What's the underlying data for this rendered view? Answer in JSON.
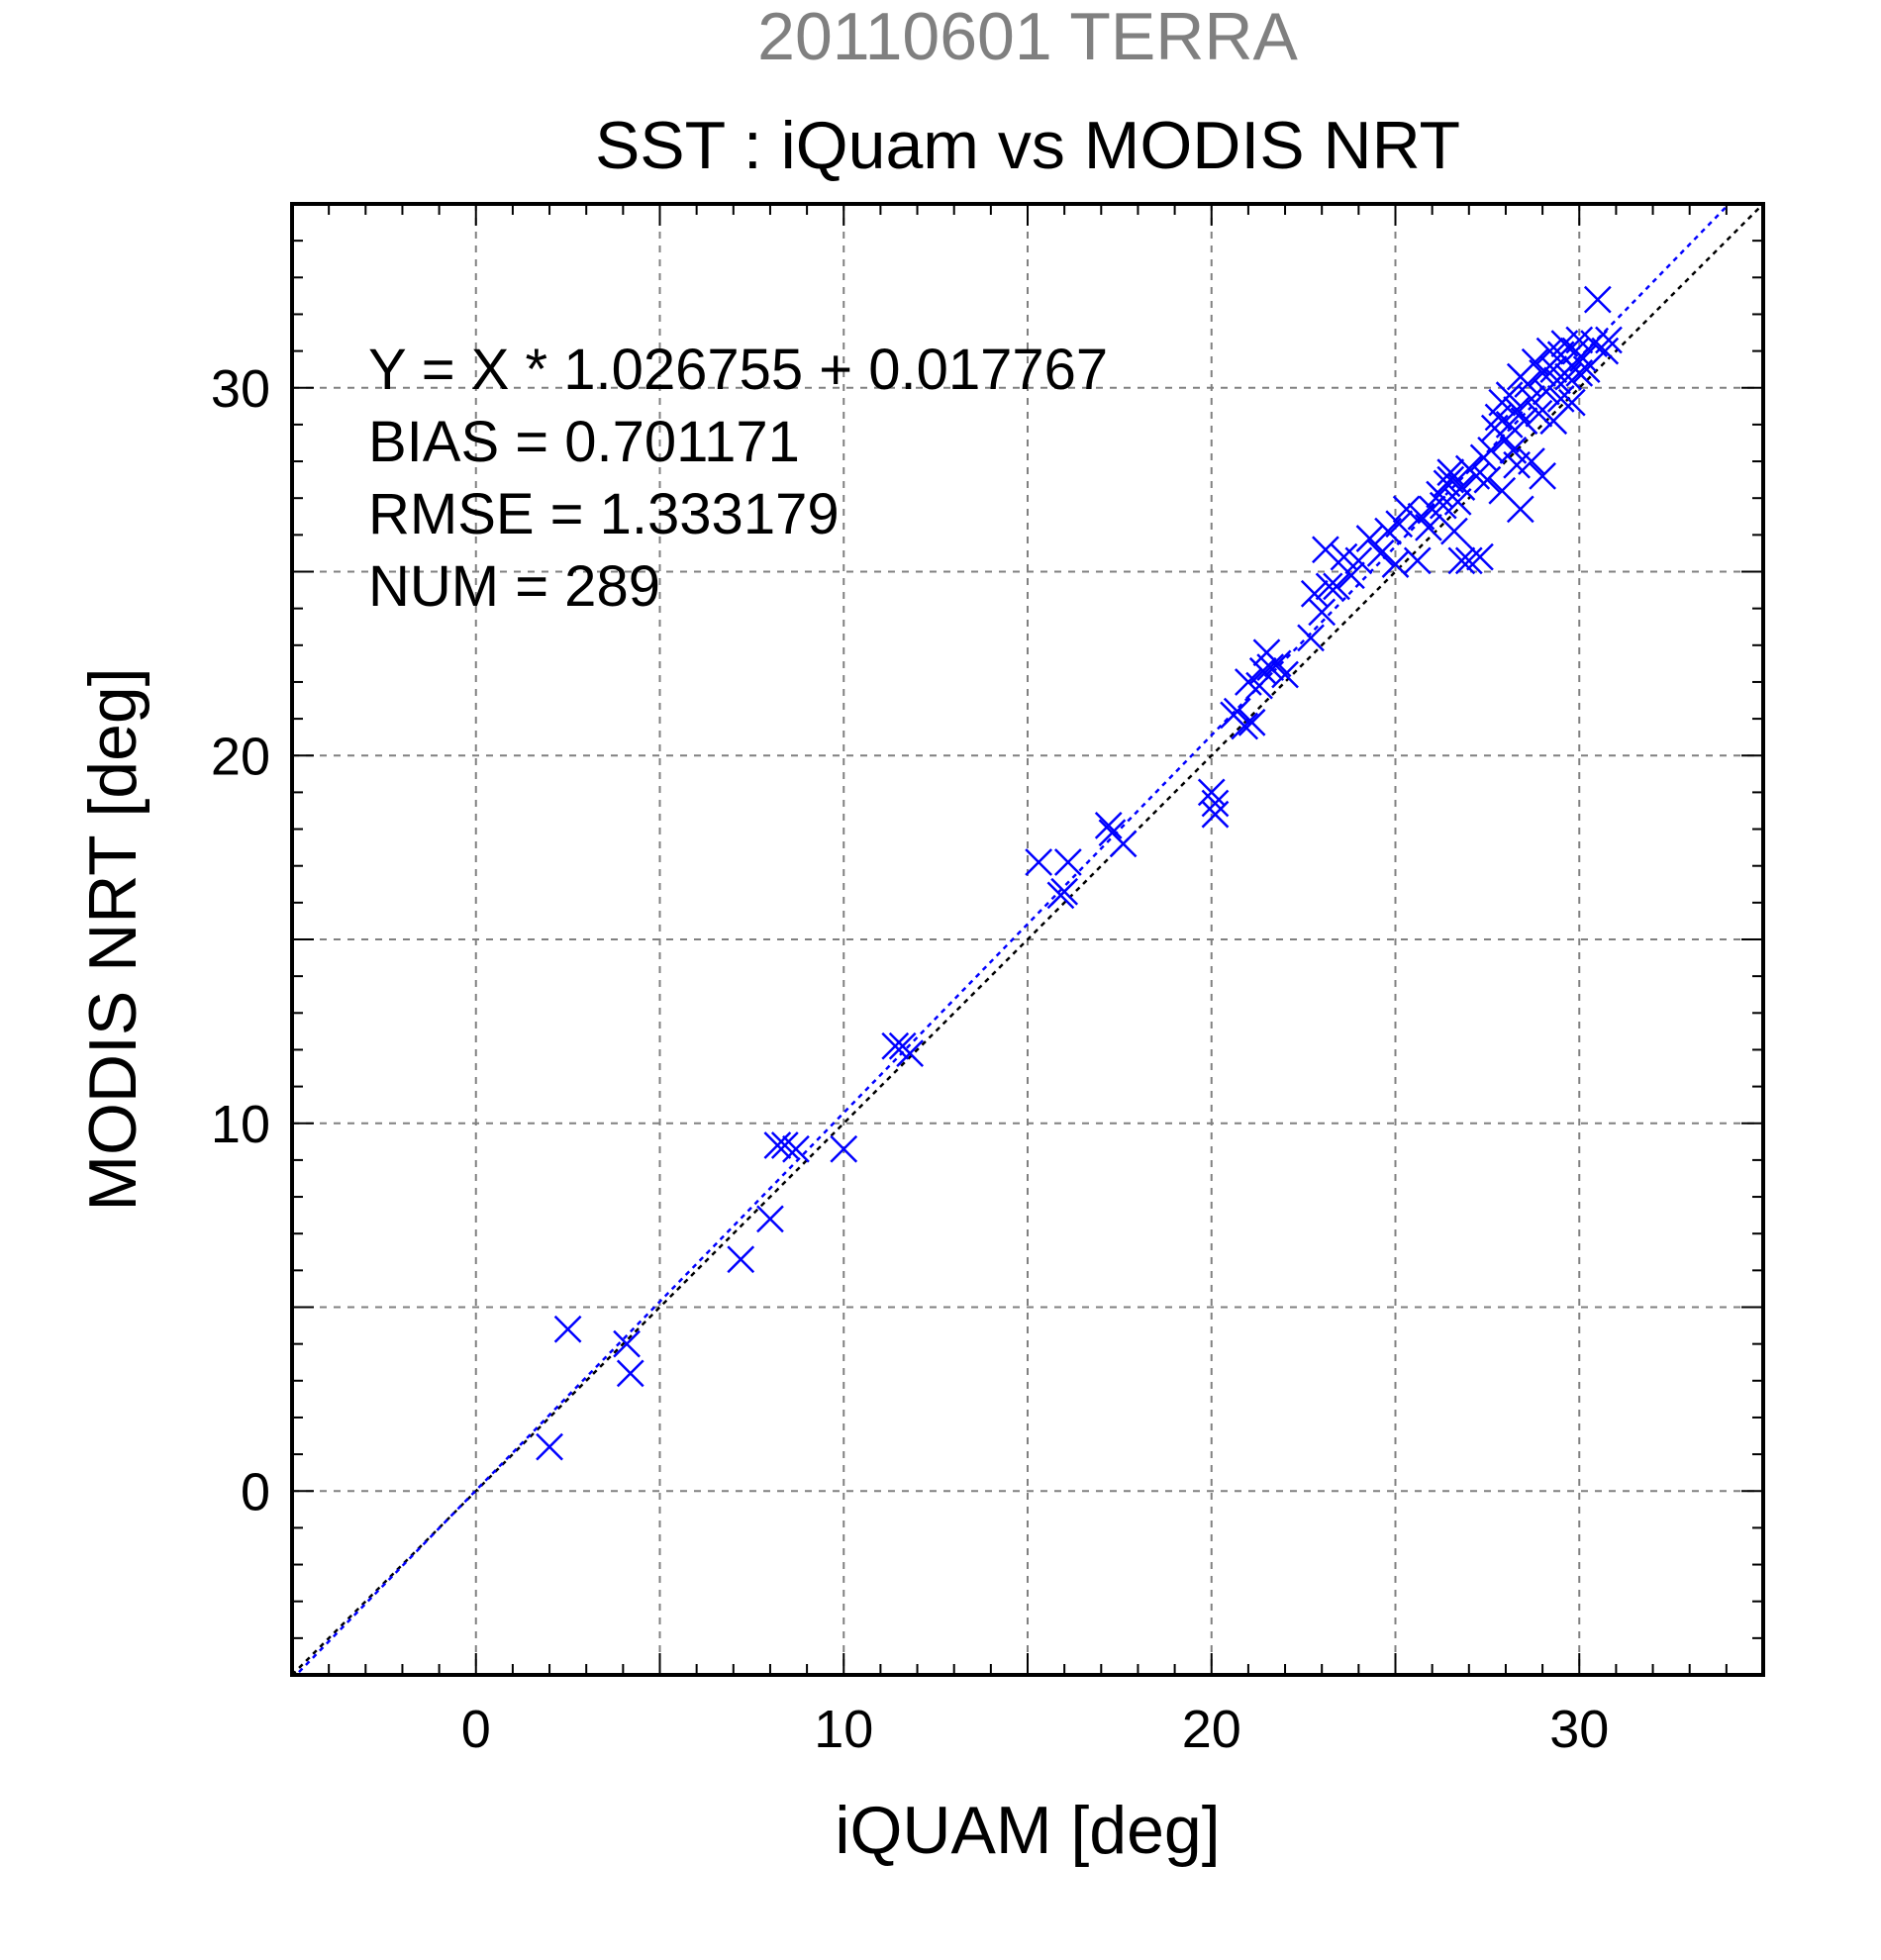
{
  "chart_data": {
    "type": "scatter",
    "supertitle": "20110601 TERRA",
    "title": "SST : iQuam vs MODIS NRT",
    "xlabel": "iQUAM [deg]",
    "ylabel": "MODIS NRT [deg]",
    "xlim": [
      -5,
      35
    ],
    "ylim": [
      -5,
      35
    ],
    "xticks": [
      0,
      10,
      20,
      30
    ],
    "yticks": [
      0,
      10,
      20,
      30
    ],
    "grid": true,
    "annotations": [
      "Y = X * 1.026755 + 0.017767",
      "BIAS = 0.701171",
      "RMSE = 1.333179",
      "NUM = 289"
    ],
    "fit_line": {
      "slope": 1.026755,
      "intercept": 0.017767
    },
    "reference_line": {
      "slope": 1,
      "intercept": 0
    },
    "colors": {
      "points": "#0000ff",
      "fit_line": "#0000ff",
      "reference_line": "#000000",
      "supertitle": "#808080",
      "grid": "#808080"
    },
    "series": [
      {
        "points": [
          [
            2.0,
            1.2
          ],
          [
            2.5,
            4.4
          ],
          [
            4.1,
            4.0
          ],
          [
            4.2,
            3.2
          ],
          [
            7.2,
            6.3
          ],
          [
            8.0,
            7.4
          ],
          [
            8.2,
            9.4
          ],
          [
            8.4,
            9.4
          ],
          [
            8.7,
            9.3
          ],
          [
            10.0,
            9.3
          ],
          [
            11.4,
            12.1
          ],
          [
            11.6,
            12.1
          ],
          [
            11.8,
            11.9
          ],
          [
            15.3,
            17.1
          ],
          [
            15.9,
            16.2
          ],
          [
            16.0,
            16.3
          ],
          [
            16.1,
            17.1
          ],
          [
            17.2,
            18.1
          ],
          [
            17.3,
            17.9
          ],
          [
            17.6,
            17.6
          ],
          [
            20.0,
            19.0
          ],
          [
            20.1,
            18.7
          ],
          [
            20.1,
            18.4
          ],
          [
            20.6,
            21.1
          ],
          [
            20.7,
            21.2
          ],
          [
            20.9,
            20.8
          ],
          [
            21.0,
            22.0
          ],
          [
            21.1,
            20.9
          ],
          [
            21.3,
            21.9
          ],
          [
            21.4,
            22.3
          ],
          [
            21.5,
            22.8
          ],
          [
            21.6,
            22.4
          ],
          [
            21.8,
            22.5
          ],
          [
            22.0,
            22.2
          ],
          [
            22.7,
            23.2
          ],
          [
            22.8,
            24.4
          ],
          [
            23.0,
            23.9
          ],
          [
            23.1,
            25.6
          ],
          [
            23.2,
            24.6
          ],
          [
            23.4,
            24.6
          ],
          [
            23.6,
            25.4
          ],
          [
            23.8,
            24.9
          ],
          [
            24.0,
            25.3
          ],
          [
            24.3,
            25.9
          ],
          [
            24.6,
            25.5
          ],
          [
            24.8,
            26.1
          ],
          [
            25.0,
            25.2
          ],
          [
            25.1,
            26.3
          ],
          [
            25.3,
            26.7
          ],
          [
            25.6,
            25.3
          ],
          [
            25.7,
            26.5
          ],
          [
            25.9,
            26.2
          ],
          [
            26.0,
            26.7
          ],
          [
            26.2,
            27.1
          ],
          [
            26.3,
            26.8
          ],
          [
            26.4,
            27.4
          ],
          [
            26.5,
            27.5
          ],
          [
            26.5,
            27.7
          ],
          [
            26.6,
            26.1
          ],
          [
            26.7,
            26.9
          ],
          [
            26.8,
            25.3
          ],
          [
            26.8,
            27.3
          ],
          [
            27.0,
            27.8
          ],
          [
            27.0,
            25.3
          ],
          [
            27.2,
            27.6
          ],
          [
            27.3,
            25.4
          ],
          [
            27.4,
            28.1
          ],
          [
            27.5,
            27.5
          ],
          [
            27.6,
            28.3
          ],
          [
            27.7,
            28.9
          ],
          [
            27.8,
            29.2
          ],
          [
            27.9,
            29.6
          ],
          [
            27.9,
            27.2
          ],
          [
            28.0,
            28.6
          ],
          [
            28.1,
            29.0
          ],
          [
            28.1,
            29.8
          ],
          [
            28.2,
            28.3
          ],
          [
            28.3,
            27.9
          ],
          [
            28.3,
            29.4
          ],
          [
            28.4,
            26.7
          ],
          [
            28.4,
            30.3
          ],
          [
            28.5,
            29.1
          ],
          [
            28.6,
            30.1
          ],
          [
            28.7,
            28.0
          ],
          [
            28.7,
            29.7
          ],
          [
            28.8,
            30.7
          ],
          [
            28.9,
            29.3
          ],
          [
            29.0,
            27.6
          ],
          [
            29.0,
            30.4
          ],
          [
            29.1,
            29.9
          ],
          [
            29.2,
            31.0
          ],
          [
            29.3,
            29.1
          ],
          [
            29.3,
            30.5
          ],
          [
            29.4,
            30.2
          ],
          [
            29.5,
            29.7
          ],
          [
            29.5,
            30.9
          ],
          [
            29.6,
            31.2
          ],
          [
            29.7,
            30.3
          ],
          [
            29.8,
            30.6
          ],
          [
            29.8,
            29.6
          ],
          [
            29.9,
            31.0
          ],
          [
            30.0,
            30.4
          ],
          [
            30.0,
            31.3
          ],
          [
            30.1,
            30.8
          ],
          [
            30.2,
            30.5
          ],
          [
            30.4,
            31.2
          ],
          [
            30.5,
            32.4
          ],
          [
            30.7,
            31.0
          ],
          [
            30.8,
            31.3
          ]
        ]
      }
    ]
  }
}
